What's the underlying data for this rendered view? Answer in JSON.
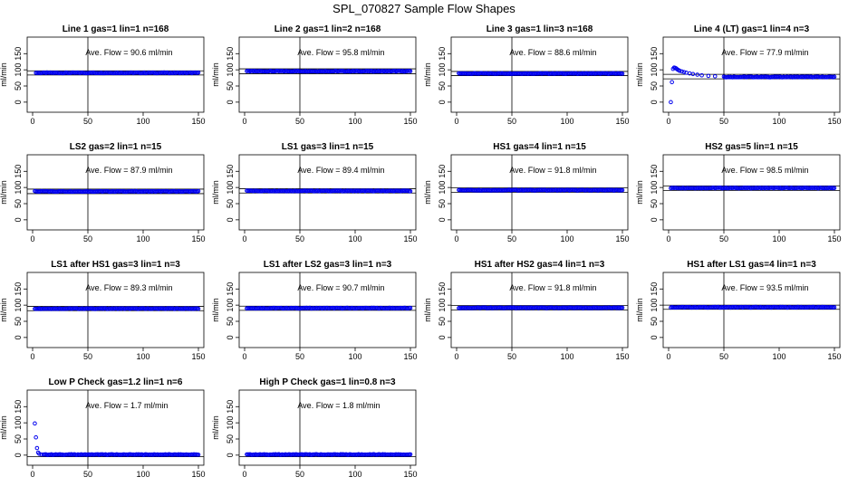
{
  "figure_title": "SPL_070827  Sample Flow Shapes",
  "chart_data": [
    {
      "type": "scatter",
      "title": "Line 1 gas=1 lin=1 n=168",
      "ylabel": "ml/min",
      "xlim": [
        0,
        150
      ],
      "ylim": [
        -20,
        190
      ],
      "xticks": [
        0,
        50,
        100,
        150
      ],
      "yticks": [
        0,
        50,
        100,
        150
      ],
      "annotation": "Ave. Flow =  90.6  ml/min",
      "vline": 50,
      "hlines": [
        97,
        84
      ],
      "series": [
        {
          "start": 3,
          "level": 90.6,
          "step": 1
        }
      ]
    },
    {
      "type": "scatter",
      "title": "Line 2 gas=1 lin=2 n=168",
      "ylabel": "ml/min",
      "xlim": [
        0,
        150
      ],
      "ylim": [
        -20,
        190
      ],
      "xticks": [
        0,
        50,
        100,
        150
      ],
      "yticks": [
        0,
        50,
        100,
        150
      ],
      "annotation": "Ave. Flow =  95.8  ml/min",
      "vline": 50,
      "hlines": [
        103,
        88
      ],
      "series": [
        {
          "start": 2,
          "level": 95.8,
          "step": 1
        }
      ]
    },
    {
      "type": "scatter",
      "title": "Line 3 gas=1 lin=3 n=168",
      "ylabel": "ml/min",
      "xlim": [
        0,
        150
      ],
      "ylim": [
        -20,
        190
      ],
      "xticks": [
        0,
        50,
        100,
        150
      ],
      "yticks": [
        0,
        50,
        100,
        150
      ],
      "annotation": "Ave. Flow =  88.6  ml/min",
      "vline": 50,
      "hlines": [
        95,
        82
      ],
      "series": [
        {
          "start": 2,
          "level": 88.6,
          "step": 1
        }
      ]
    },
    {
      "type": "scatter",
      "title": "Line 4 (LT) gas=1 lin=4 n=3",
      "ylabel": "ml/min",
      "xlim": [
        0,
        150
      ],
      "ylim": [
        -20,
        190
      ],
      "xticks": [
        0,
        50,
        100,
        150
      ],
      "yticks": [
        0,
        50,
        100,
        150
      ],
      "annotation": "Ave. Flow =  77.9  ml/min",
      "vline": 50,
      "hlines": [
        86,
        72
      ],
      "series": [
        {
          "start": 2,
          "level": 77.9,
          "step": 1,
          "early": [
            [
              2,
              0
            ],
            [
              3,
              62
            ],
            [
              4,
              103
            ],
            [
              5,
              107
            ],
            [
              6,
              106
            ],
            [
              7,
              104
            ],
            [
              8,
              101
            ],
            [
              9,
              99
            ],
            [
              10,
              97
            ],
            [
              12,
              95
            ],
            [
              14,
              93
            ],
            [
              16,
              91
            ],
            [
              19,
              89
            ],
            [
              22,
              87
            ],
            [
              26,
              85
            ],
            [
              30,
              83
            ],
            [
              36,
              81
            ],
            [
              42,
              80
            ],
            [
              50,
              79
            ]
          ]
        }
      ]
    },
    {
      "type": "scatter",
      "title": "LS2 gas=2 lin=1 n=15",
      "ylabel": "ml/min",
      "xlim": [
        0,
        150
      ],
      "ylim": [
        -20,
        190
      ],
      "xticks": [
        0,
        50,
        100,
        150
      ],
      "yticks": [
        0,
        50,
        100,
        150
      ],
      "annotation": "Ave. Flow =  87.9  ml/min",
      "vline": 50,
      "hlines": [
        95,
        81
      ],
      "series": [
        {
          "start": 2,
          "level": 87.9,
          "step": 1
        }
      ]
    },
    {
      "type": "scatter",
      "title": "LS1 gas=3 lin=1 n=15",
      "ylabel": "ml/min",
      "xlim": [
        0,
        150
      ],
      "ylim": [
        -20,
        190
      ],
      "xticks": [
        0,
        50,
        100,
        150
      ],
      "yticks": [
        0,
        50,
        100,
        150
      ],
      "annotation": "Ave. Flow =  89.4  ml/min",
      "vline": 50,
      "hlines": [
        96,
        83
      ],
      "series": [
        {
          "start": 2,
          "level": 89.4,
          "step": 1
        }
      ]
    },
    {
      "type": "scatter",
      "title": "HS1 gas=4 lin=1 n=15",
      "ylabel": "ml/min",
      "xlim": [
        0,
        150
      ],
      "ylim": [
        -20,
        190
      ],
      "xticks": [
        0,
        50,
        100,
        150
      ],
      "yticks": [
        0,
        50,
        100,
        150
      ],
      "annotation": "Ave. Flow =  91.8  ml/min",
      "vline": 50,
      "hlines": [
        99,
        85
      ],
      "series": [
        {
          "start": 2,
          "level": 91.8,
          "step": 1
        }
      ]
    },
    {
      "type": "scatter",
      "title": "HS2 gas=5 lin=1 n=15",
      "ylabel": "ml/min",
      "xlim": [
        0,
        150
      ],
      "ylim": [
        -20,
        190
      ],
      "xticks": [
        0,
        50,
        100,
        150
      ],
      "yticks": [
        0,
        50,
        100,
        150
      ],
      "annotation": "Ave. Flow =  98.5  ml/min",
      "vline": 50,
      "hlines": [
        105,
        91
      ],
      "series": [
        {
          "start": 2,
          "level": 98.5,
          "step": 1
        }
      ]
    },
    {
      "type": "scatter",
      "title": "LS1 after HS1 gas=3 lin=1 n=3",
      "ylabel": "ml/min",
      "xlim": [
        0,
        150
      ],
      "ylim": [
        -20,
        190
      ],
      "xticks": [
        0,
        50,
        100,
        150
      ],
      "yticks": [
        0,
        50,
        100,
        150
      ],
      "annotation": "Ave. Flow =  89.3  ml/min",
      "vline": 50,
      "hlines": [
        96,
        83
      ],
      "series": [
        {
          "start": 2,
          "level": 89.3,
          "step": 1
        }
      ]
    },
    {
      "type": "scatter",
      "title": "LS1 after LS2 gas=3 lin=1 n=3",
      "ylabel": "ml/min",
      "xlim": [
        0,
        150
      ],
      "ylim": [
        -20,
        190
      ],
      "xticks": [
        0,
        50,
        100,
        150
      ],
      "yticks": [
        0,
        50,
        100,
        150
      ],
      "annotation": "Ave. Flow =  90.7  ml/min",
      "vline": 50,
      "hlines": [
        97,
        84
      ],
      "series": [
        {
          "start": 2,
          "level": 90.7,
          "step": 1
        }
      ]
    },
    {
      "type": "scatter",
      "title": "HS1 after HS2 gas=4 lin=1 n=3",
      "ylabel": "ml/min",
      "xlim": [
        0,
        150
      ],
      "ylim": [
        -20,
        190
      ],
      "xticks": [
        0,
        50,
        100,
        150
      ],
      "yticks": [
        0,
        50,
        100,
        150
      ],
      "annotation": "Ave. Flow =  91.8  ml/min",
      "vline": 50,
      "hlines": [
        99,
        85
      ],
      "series": [
        {
          "start": 2,
          "level": 91.8,
          "step": 1
        }
      ]
    },
    {
      "type": "scatter",
      "title": "HS1 after LS1 gas=4 lin=1 n=3",
      "ylabel": "ml/min",
      "xlim": [
        0,
        150
      ],
      "ylim": [
        -20,
        190
      ],
      "xticks": [
        0,
        50,
        100,
        150
      ],
      "yticks": [
        0,
        50,
        100,
        150
      ],
      "annotation": "Ave. Flow =  93.5  ml/min",
      "vline": 50,
      "hlines": [
        100,
        87
      ],
      "series": [
        {
          "start": 2,
          "level": 93.5,
          "step": 1
        }
      ]
    },
    {
      "type": "scatter",
      "title": "Low P Check gas=1.2 lin=1 n=6",
      "ylabel": "ml/min",
      "xlim": [
        0,
        150
      ],
      "ylim": [
        -20,
        190
      ],
      "xticks": [
        0,
        50,
        100,
        150
      ],
      "yticks": [
        0,
        50,
        100,
        150
      ],
      "annotation": "Ave. Flow =  1.7  ml/min",
      "vline": 50,
      "hlines": [
        -5
      ],
      "series": [
        {
          "start": 2,
          "level": 1.7,
          "step": 1,
          "early": [
            [
              2,
              98
            ],
            [
              3,
              55
            ],
            [
              4,
              22
            ],
            [
              5,
              8
            ],
            [
              6,
              4
            ],
            [
              8,
              2
            ],
            [
              10,
              2
            ]
          ]
        }
      ]
    },
    {
      "type": "scatter",
      "title": "High P Check gas=1 lin=0.8 n=3",
      "ylabel": "ml/min",
      "xlim": [
        0,
        150
      ],
      "ylim": [
        -20,
        190
      ],
      "xticks": [
        0,
        50,
        100,
        150
      ],
      "yticks": [
        0,
        50,
        100,
        150
      ],
      "annotation": "Ave. Flow =  1.8  ml/min",
      "vline": 50,
      "hlines": [
        -5
      ],
      "series": [
        {
          "start": 2,
          "level": 1.8,
          "step": 1
        }
      ]
    }
  ]
}
